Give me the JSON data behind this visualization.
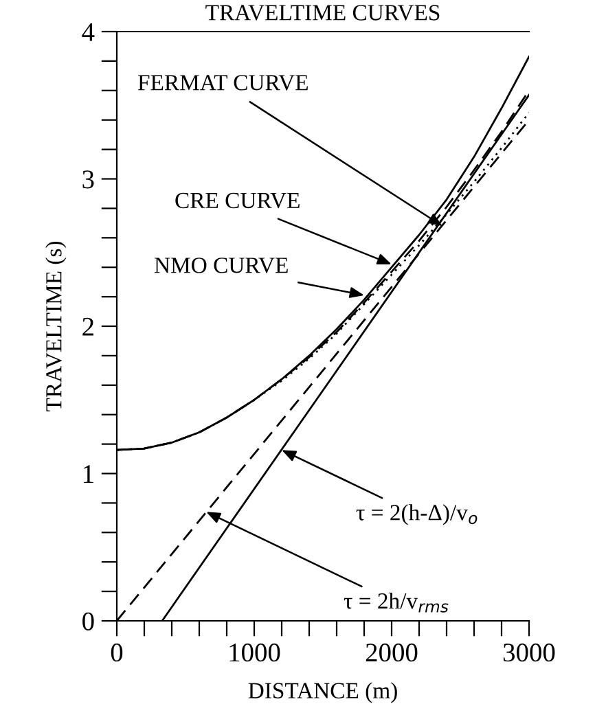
{
  "chart_data": {
    "type": "line",
    "title": "TRAVELTIME CURVES",
    "xlabel": "DISTANCE (m)",
    "ylabel": "TRAVELTIME (s)",
    "xlim": [
      0,
      3000
    ],
    "ylim": [
      0,
      4
    ],
    "xticks": [
      0,
      {
        "value": 200,
        "label": null
      },
      {
        "value": 400,
        "label": null
      },
      {
        "value": 600,
        "label": null
      },
      {
        "value": 800,
        "label": null
      },
      1000,
      {
        "value": 1200,
        "label": null
      },
      {
        "value": 1400,
        "label": null
      },
      {
        "value": 1600,
        "label": null
      },
      {
        "value": 1800,
        "label": null
      },
      2000,
      {
        "value": 2200,
        "label": null
      },
      {
        "value": 2400,
        "label": null
      },
      {
        "value": 2600,
        "label": null
      },
      {
        "value": 2800,
        "label": null
      },
      3000
    ],
    "yticks": [
      0,
      {
        "value": 0.2,
        "label": null
      },
      {
        "value": 0.4,
        "label": null
      },
      {
        "value": 0.6,
        "label": null
      },
      {
        "value": 0.8,
        "label": null
      },
      1,
      {
        "value": 1.2,
        "label": null
      },
      {
        "value": 1.4,
        "label": null
      },
      {
        "value": 1.6,
        "label": null
      },
      {
        "value": 1.8,
        "label": null
      },
      2,
      {
        "value": 2.2,
        "label": null
      },
      {
        "value": 2.4,
        "label": null
      },
      {
        "value": 2.6,
        "label": null
      },
      {
        "value": 2.8,
        "label": null
      },
      3,
      {
        "value": 3.2,
        "label": null
      },
      {
        "value": 3.4,
        "label": null
      },
      {
        "value": 3.6,
        "label": null
      },
      {
        "value": 3.8,
        "label": null
      },
      4
    ],
    "grid": false,
    "legend": false,
    "series": [
      {
        "color": "#000000",
        "line_style": "solid",
        "x": [
          0,
          200,
          400,
          600,
          800,
          1000,
          1200,
          1400,
          1600,
          1800,
          2000,
          2200,
          2400,
          2600,
          2800,
          3000
        ],
        "values": [
          1.16,
          1.17,
          1.21,
          1.28,
          1.38,
          1.5,
          1.64,
          1.8,
          1.98,
          2.18,
          2.4,
          2.62,
          2.86,
          3.15,
          3.48,
          3.83
        ]
      },
      {
        "color": "#000000",
        "line_style": "dashed",
        "x": [
          0,
          200,
          400,
          600,
          800,
          1000,
          1200,
          1400,
          1600,
          1800,
          2000,
          2200,
          2400,
          2600,
          2800,
          3000
        ],
        "values": [
          1.16,
          1.17,
          1.21,
          1.28,
          1.38,
          1.5,
          1.64,
          1.79,
          1.96,
          2.16,
          2.37,
          2.58,
          2.81,
          3.06,
          3.32,
          3.6
        ]
      },
      {
        "color": "#000000",
        "line_style": "dotted",
        "x": [
          0,
          200,
          400,
          600,
          800,
          1000,
          1200,
          1400,
          1600,
          1800,
          2000,
          2200,
          2400,
          2600,
          2800,
          3000
        ],
        "values": [
          1.16,
          1.17,
          1.21,
          1.28,
          1.38,
          1.5,
          1.63,
          1.78,
          1.95,
          2.15,
          2.35,
          2.55,
          2.76,
          2.98,
          3.21,
          3.45
        ]
      },
      {
        "color": "#000000",
        "line_style": "solid",
        "x": [
          330,
          3000
        ],
        "values": [
          0,
          3.57
        ]
      },
      {
        "color": "#000000",
        "line_style": "dashed",
        "x": [
          0,
          3000
        ],
        "values": [
          0,
          3.4
        ]
      }
    ],
    "annotations": [
      {
        "text": "FERMAT CURVE",
        "x": 2370,
        "y": 2.68
      },
      {
        "text": "CRE CURVE",
        "x": 2000,
        "y": 2.42
      },
      {
        "text": "NMO CURVE",
        "x": 1800,
        "y": 2.21
      },
      {
        "text": "τ = 2(h-Δ)/v$_{o}$",
        "x": 1200,
        "y": 1.16
      },
      {
        "text": "τ = 2h/v$_{rms}$",
        "x": 650,
        "y": 0.74
      }
    ]
  }
}
